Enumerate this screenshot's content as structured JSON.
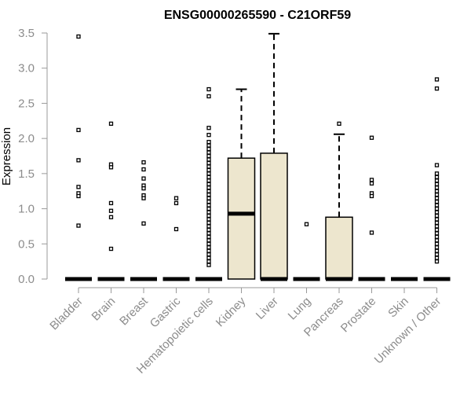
{
  "chart_data": {
    "type": "boxplot",
    "title": "ENSG00000265590 - C21ORF59",
    "xlabel": "",
    "ylabel": "Expression",
    "ylim": [
      0,
      3.5
    ],
    "yticks": [
      "0.0",
      "0.5",
      "1.0",
      "1.5",
      "2.0",
      "2.5",
      "3.0",
      "3.5"
    ],
    "grid": false,
    "colors": {
      "box_fill": "#ede6ce",
      "stroke": "#000000",
      "axis": "#9a9a9a",
      "text": "#8c8c8c"
    },
    "categories": [
      "Bladder",
      "Brain",
      "Breast",
      "Gastric",
      "Hematopoietic cells",
      "Kidney",
      "Liver",
      "Lung",
      "Pancreas",
      "Prostate",
      "Skin",
      "Unknown / Other"
    ],
    "boxes": [
      {
        "name": "Bladder",
        "q1": 0,
        "median": 0,
        "q3": 0,
        "whisker_low": 0,
        "whisker_high": 0,
        "outliers": [
          3.45,
          2.12,
          1.69,
          1.31,
          1.22,
          1.18,
          0.76
        ]
      },
      {
        "name": "Brain",
        "q1": 0,
        "median": 0,
        "q3": 0,
        "whisker_low": 0,
        "whisker_high": 0,
        "outliers": [
          2.21,
          1.63,
          1.59,
          1.08,
          0.97,
          0.88,
          0.43
        ]
      },
      {
        "name": "Breast",
        "q1": 0,
        "median": 0,
        "q3": 0,
        "whisker_low": 0,
        "whisker_high": 0,
        "outliers": [
          1.66,
          1.56,
          1.43,
          1.33,
          1.29,
          1.19,
          1.15,
          0.79
        ]
      },
      {
        "name": "Gastric",
        "q1": 0,
        "median": 0,
        "q3": 0,
        "whisker_low": 0,
        "whisker_high": 0,
        "outliers": [
          1.15,
          1.08,
          0.71
        ]
      },
      {
        "name": "Hematopoietic cells",
        "q1": 0,
        "median": 0,
        "q3": 0,
        "whisker_low": 0,
        "whisker_high": 0,
        "outliers": [
          2.7,
          2.6,
          2.15,
          2.05,
          1.95,
          1.9,
          1.85,
          1.8,
          1.75,
          1.7,
          1.65,
          1.6,
          1.55,
          1.5,
          1.45,
          1.4,
          1.35,
          1.3,
          1.25,
          1.2,
          1.15,
          1.1,
          1.05,
          1.0,
          0.95,
          0.9,
          0.85,
          0.8,
          0.75,
          0.7,
          0.65,
          0.6,
          0.55,
          0.5,
          0.45,
          0.4,
          0.35,
          0.3,
          0.25,
          0.2
        ]
      },
      {
        "name": "Kidney",
        "q1": 0,
        "median": 0.93,
        "q3": 1.72,
        "whisker_low": 0,
        "whisker_high": 2.7,
        "outliers": []
      },
      {
        "name": "Liver",
        "q1": 0,
        "median": 0,
        "q3": 1.79,
        "whisker_low": 0,
        "whisker_high": 3.49,
        "outliers": []
      },
      {
        "name": "Lung",
        "q1": 0,
        "median": 0,
        "q3": 0,
        "whisker_low": 0,
        "whisker_high": 0,
        "outliers": [
          0.78
        ]
      },
      {
        "name": "Pancreas",
        "q1": 0,
        "median": 0,
        "q3": 0.88,
        "whisker_low": 0,
        "whisker_high": 2.06,
        "outliers": [
          2.21
        ]
      },
      {
        "name": "Prostate",
        "q1": 0,
        "median": 0,
        "q3": 0,
        "whisker_low": 0,
        "whisker_high": 0,
        "outliers": [
          2.01,
          1.41,
          1.36,
          1.22,
          1.18,
          0.66
        ]
      },
      {
        "name": "Skin",
        "q1": 0,
        "median": 0,
        "q3": 0,
        "whisker_low": 0,
        "whisker_high": 0,
        "outliers": []
      },
      {
        "name": "Unknown / Other",
        "q1": 0,
        "median": 0,
        "q3": 0,
        "whisker_low": 0,
        "whisker_high": 0,
        "outliers": [
          2.84,
          2.71,
          1.62,
          1.5,
          1.45,
          1.4,
          1.35,
          1.3,
          1.25,
          1.2,
          1.15,
          1.1,
          1.05,
          1.0,
          0.95,
          0.9,
          0.85,
          0.8,
          0.75,
          0.7,
          0.65,
          0.6,
          0.55,
          0.5,
          0.45,
          0.4,
          0.35,
          0.3,
          0.25
        ]
      }
    ]
  }
}
